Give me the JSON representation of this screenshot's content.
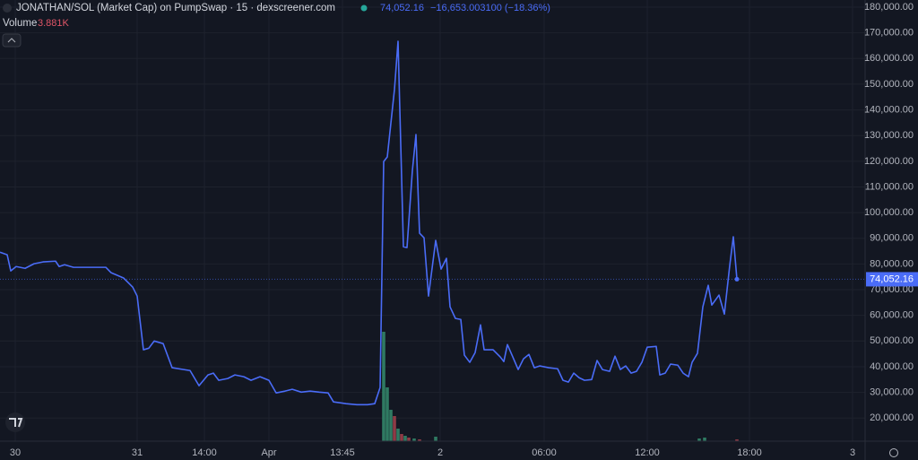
{
  "chart_data": {
    "type": "line",
    "title": "JONATHAN/SOL (Market Cap) on PumpSwap · 15 · dexscreener.com",
    "last_price": "74,052.16",
    "change": "−16,653.003100 (−18.36%)",
    "volume_label": "Volume",
    "volume_last": "3.881K",
    "grid": true,
    "xlim": [
      0,
      193
    ],
    "xticks": [
      {
        "value": 3.4,
        "label": "30"
      },
      {
        "value": 30.6,
        "label": "31"
      },
      {
        "value": 45.6,
        "label": "14:00"
      },
      {
        "value": 60,
        "label": "Apr"
      },
      {
        "value": 76.4,
        "label": "13:45"
      },
      {
        "value": 98.2,
        "label": "2"
      },
      {
        "value": 121.4,
        "label": "06:00"
      },
      {
        "value": 144.4,
        "label": "12:00"
      },
      {
        "value": 167.2,
        "label": "18:00"
      },
      {
        "value": 190.2,
        "label": "3"
      }
    ],
    "ylim": [
      11000,
      182800
    ],
    "yticks": [
      {
        "value": 20000,
        "label": "20,000.00"
      },
      {
        "value": 30000,
        "label": "30,000.00"
      },
      {
        "value": 40000,
        "label": "40,000.00"
      },
      {
        "value": 50000,
        "label": "50,000.00"
      },
      {
        "value": 60000,
        "label": "60,000.00"
      },
      {
        "value": 70000,
        "label": "70,000.00"
      },
      {
        "value": 80000,
        "label": "80,000.00"
      },
      {
        "value": 90000,
        "label": "90,000.00"
      },
      {
        "value": 100000,
        "label": "100,000.00"
      },
      {
        "value": 110000,
        "label": "110,000.00"
      },
      {
        "value": 120000,
        "label": "120,000.00"
      },
      {
        "value": 130000,
        "label": "130,000.00"
      },
      {
        "value": 140000,
        "label": "140,000.00"
      },
      {
        "value": 150000,
        "label": "150,000.00"
      },
      {
        "value": 160000,
        "label": "160,000.00"
      },
      {
        "value": 170000,
        "label": "170,000.00"
      },
      {
        "value": 180000,
        "label": "180,000.00"
      }
    ],
    "y2lim": [
      0,
      250000
    ],
    "series": [
      {
        "name": "Market Cap",
        "color": "#4a6cf7",
        "x": [
          0,
          1.6,
          2.4,
          3.6,
          5.6,
          7.6,
          9.6,
          12.4,
          13.2,
          14.4,
          16.4,
          18.4,
          20.4,
          23.6,
          24.8,
          27.6,
          29.6,
          30.6,
          32,
          33.2,
          34.4,
          36.4,
          38.4,
          42.4,
          44.4,
          46.4,
          47.6,
          48.8,
          50.8,
          52.4,
          54.4,
          56,
          58,
          60,
          61.6,
          63.6,
          65.2,
          67.2,
          69.2,
          71.2,
          73.2,
          74.4,
          77.2,
          79.6,
          82,
          83.6,
          84.8,
          85.6,
          86.4,
          88,
          88.8,
          90,
          90.8,
          92,
          92.8,
          93.6,
          94.6,
          95.6,
          97.2,
          98.4,
          99.6,
          100.4,
          101.6,
          102.8,
          103.6,
          104.8,
          106,
          107.2,
          108,
          110,
          111.6,
          112.4,
          113.2,
          114.4,
          115.6,
          116.8,
          118,
          119.2,
          120.4,
          122.4,
          124.4,
          125.6,
          126.8,
          128,
          129.2,
          130.4,
          132,
          133.2,
          134.4,
          136,
          137.2,
          138.4,
          139.6,
          140.8,
          142,
          143.2,
          144.4,
          146.4,
          147.2,
          148.4,
          149.6,
          151.2,
          152.4,
          153.6,
          154.4,
          155.6,
          156.8,
          158,
          158.8,
          160.4,
          161.6,
          162.8,
          163.6,
          164.4
        ],
        "values": [
          84600,
          83600,
          77300,
          79000,
          78300,
          80100,
          80800,
          81100,
          79000,
          79700,
          78700,
          78700,
          78700,
          78700,
          76600,
          74500,
          71000,
          67500,
          46600,
          47200,
          50000,
          49000,
          39600,
          38500,
          32600,
          36800,
          37500,
          34700,
          35400,
          36800,
          36100,
          34700,
          36100,
          34700,
          29800,
          30500,
          31200,
          30100,
          30500,
          30100,
          29800,
          26300,
          25600,
          25200,
          25200,
          25600,
          31900,
          119900,
          121700,
          147900,
          166700,
          86700,
          86400,
          116400,
          130400,
          92000,
          90200,
          67500,
          89200,
          78000,
          82200,
          63300,
          58800,
          58400,
          44500,
          41700,
          45500,
          56300,
          46600,
          46600,
          43800,
          42000,
          48600,
          43800,
          38900,
          43100,
          44800,
          39600,
          40300,
          39600,
          39200,
          34700,
          34000,
          37500,
          35700,
          34700,
          35000,
          42400,
          38900,
          38200,
          44100,
          38900,
          40300,
          37500,
          38200,
          41700,
          47600,
          47900,
          36800,
          37500,
          41000,
          40600,
          37500,
          36100,
          41700,
          45200,
          63300,
          71700,
          64000,
          67900,
          60500,
          79400,
          90600,
          74052.16
        ]
      },
      {
        "name": "Volume",
        "axis": "y2",
        "type": "bar",
        "x": [
          85.6,
          86.4,
          87.2,
          88,
          88.8,
          89.6,
          90.4,
          91.2,
          92.4,
          93.6,
          97.2,
          156,
          157.2,
          164.4
        ],
        "values": [
          244000,
          120000,
          70000,
          56000,
          28000,
          16000,
          12000,
          8000,
          6000,
          4000,
          10000,
          6000,
          8000,
          3881
        ],
        "colors": [
          "#2f7a62",
          "#2f7a62",
          "#2f7a62",
          "#8e3b46",
          "#2f7a62",
          "#8e3b46",
          "#2f7a62",
          "#8e3b46",
          "#2f7a62",
          "#8e3b46",
          "#2f7a62",
          "#2f7a62",
          "#2f7a62",
          "#8e3b46"
        ]
      }
    ]
  }
}
